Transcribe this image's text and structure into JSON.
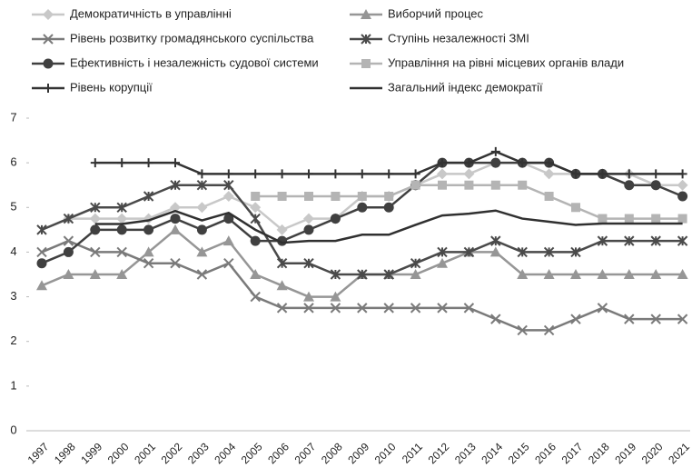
{
  "chart_data": {
    "type": "line",
    "categories": [
      "1997",
      "1998",
      "1999",
      "2000",
      "2001",
      "2002",
      "2003",
      "2004",
      "2005",
      "2006",
      "2007",
      "2008",
      "2009",
      "2010",
      "2011",
      "2012",
      "2013",
      "2014",
      "2015",
      "2016",
      "2017",
      "2018",
      "2019",
      "2020",
      "2021"
    ],
    "ylim": [
      0,
      7
    ],
    "yticks": [
      0,
      1,
      2,
      3,
      4,
      5,
      6,
      7
    ],
    "series": [
      {
        "name": "Демократичність в управлінні",
        "color": "#c8c8c8",
        "marker": "diamond",
        "values": [
          null,
          4.75,
          4.75,
          4.75,
          4.75,
          5.0,
          5.0,
          5.25,
          5.0,
          4.5,
          4.75,
          4.75,
          5.25,
          5.25,
          5.5,
          5.75,
          5.75,
          6.0,
          6.0,
          5.75,
          5.75,
          5.75,
          5.75,
          5.5,
          5.5
        ]
      },
      {
        "name": "Виборчий процес",
        "color": "#969696",
        "marker": "triangle",
        "values": [
          3.25,
          3.5,
          3.5,
          3.5,
          4.0,
          4.5,
          4.0,
          4.25,
          3.5,
          3.25,
          3.0,
          3.0,
          3.5,
          3.5,
          3.5,
          3.75,
          4.0,
          4.0,
          3.5,
          3.5,
          3.5,
          3.5,
          3.5,
          3.5,
          3.5
        ]
      },
      {
        "name": "Рівень розвитку громадянського суспільства",
        "color": "#7a7a7a",
        "marker": "x",
        "values": [
          4.0,
          4.25,
          4.0,
          4.0,
          3.75,
          3.75,
          3.5,
          3.75,
          3.0,
          2.75,
          2.75,
          2.75,
          2.75,
          2.75,
          2.75,
          2.75,
          2.75,
          2.5,
          2.25,
          2.25,
          2.5,
          2.75,
          2.5,
          2.5,
          2.5
        ]
      },
      {
        "name": "Ступінь незалежності ЗМІ",
        "color": "#4a4a4a",
        "marker": "asterisk",
        "values": [
          4.5,
          4.75,
          5.0,
          5.0,
          5.25,
          5.5,
          5.5,
          5.5,
          4.75,
          3.75,
          3.75,
          3.5,
          3.5,
          3.5,
          3.75,
          4.0,
          4.0,
          4.25,
          4.0,
          4.0,
          4.0,
          4.25,
          4.25,
          4.25,
          4.25
        ]
      },
      {
        "name": "Ефективність і незалежність судової системи",
        "color": "#404040",
        "marker": "circle",
        "values": [
          3.75,
          4.0,
          4.5,
          4.5,
          4.5,
          4.75,
          4.5,
          4.75,
          4.25,
          4.25,
          4.5,
          4.75,
          5.0,
          5.0,
          5.5,
          6.0,
          6.0,
          6.0,
          6.0,
          6.0,
          5.75,
          5.75,
          5.5,
          5.5,
          5.25
        ]
      },
      {
        "name": "Управління на рівні місцевих органів влади",
        "color": "#b4b4b4",
        "marker": "square",
        "values": [
          null,
          null,
          null,
          null,
          null,
          null,
          null,
          null,
          5.25,
          5.25,
          5.25,
          5.25,
          5.25,
          5.25,
          5.5,
          5.5,
          5.5,
          5.5,
          5.5,
          5.25,
          5.0,
          4.75,
          4.75,
          4.75,
          4.75
        ]
      },
      {
        "name": "Рівень корупції",
        "color": "#333333",
        "marker": "plus",
        "values": [
          null,
          null,
          6.0,
          6.0,
          6.0,
          6.0,
          5.75,
          5.75,
          5.75,
          5.75,
          5.75,
          5.75,
          5.75,
          5.75,
          5.75,
          6.0,
          6.0,
          6.25,
          6.0,
          6.0,
          5.75,
          5.75,
          5.75,
          5.75,
          5.75
        ]
      },
      {
        "name": "Загальний індекс демократії",
        "color": "#303030",
        "marker": "none",
        "values": [
          null,
          null,
          4.63,
          4.63,
          4.71,
          4.92,
          4.71,
          4.88,
          4.5,
          4.21,
          4.25,
          4.25,
          4.39,
          4.39,
          4.61,
          4.82,
          4.86,
          4.93,
          4.75,
          4.68,
          4.61,
          4.64,
          4.64,
          4.64,
          4.64
        ]
      }
    ]
  }
}
